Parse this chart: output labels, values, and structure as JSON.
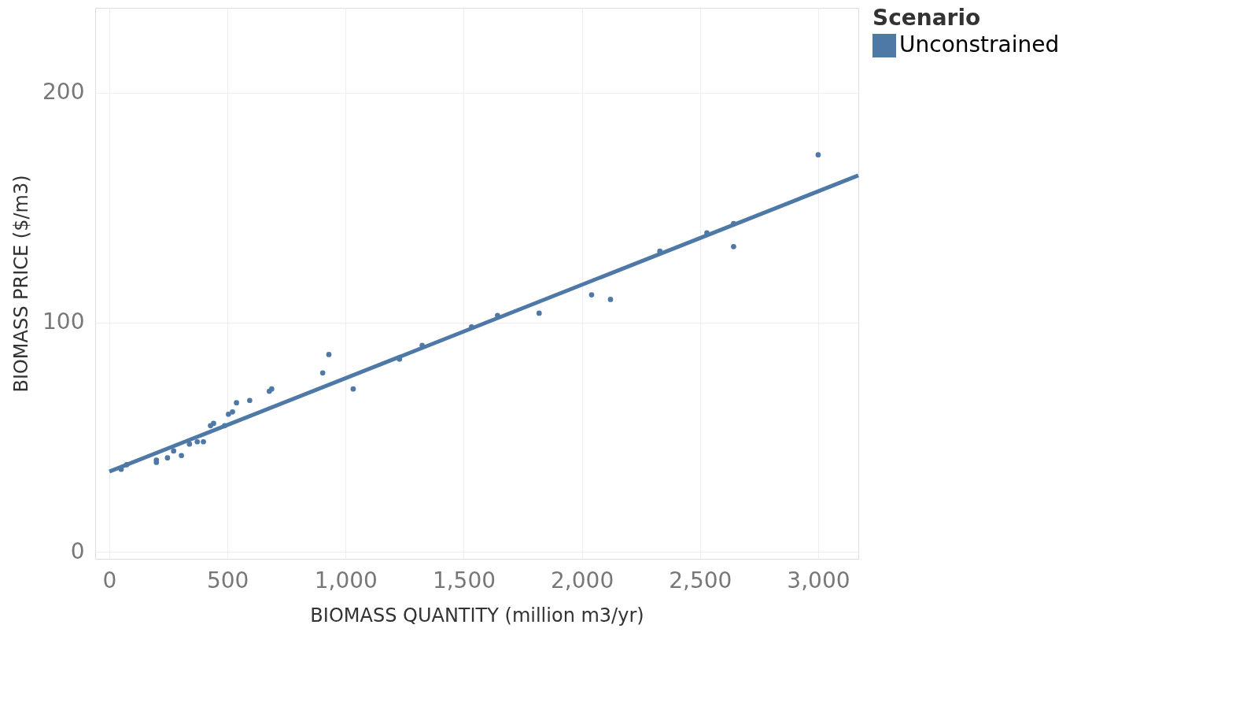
{
  "chart_data": {
    "type": "scatter",
    "xlabel": "BIOMASS QUANTITY (million m3/yr)",
    "ylabel": "BIOMASS PRICE ($/m3)",
    "legend_title": "Scenario",
    "xlim": [
      -60,
      3170
    ],
    "ylim": [
      -3,
      237
    ],
    "xticks": [
      0,
      500,
      {
        "value": 1000,
        "label": "1,000"
      },
      {
        "value": 1500,
        "label": "1,500"
      },
      {
        "value": 2000,
        "label": "2,000"
      },
      {
        "value": 2500,
        "label": "2,500"
      },
      {
        "value": 3000,
        "label": "3,000"
      }
    ],
    "yticks": [
      0,
      100,
      200
    ],
    "grid": true,
    "legend": "top right",
    "marker": "circle",
    "series": [
      {
        "name": "Unconstrained",
        "color": "#4e79a7",
        "x": [
          50,
          73,
          199,
          199,
          246,
          272,
          305,
          339,
          372,
          398,
          428,
          441,
          488,
          504,
          521,
          538,
          594,
          677,
          687,
          903,
          929,
          1032,
          1228,
          1324,
          1533,
          1643,
          1819,
          2041,
          2121,
          2330,
          2529,
          2642,
          2642,
          3000
        ],
        "values": [
          36,
          38,
          40,
          39,
          41,
          44,
          42,
          47,
          48,
          48,
          55,
          56,
          55,
          60,
          61,
          65,
          66,
          70,
          71,
          78,
          86,
          71,
          84,
          90,
          98,
          103,
          104,
          112,
          110,
          131,
          139,
          133,
          143,
          173
        ]
      },
      {
        "type": "line",
        "marker": "none",
        "line_style": "solid",
        "color": "#4e79a7",
        "x": [
          0,
          3170
        ],
        "values": [
          35,
          164
        ]
      }
    ]
  }
}
